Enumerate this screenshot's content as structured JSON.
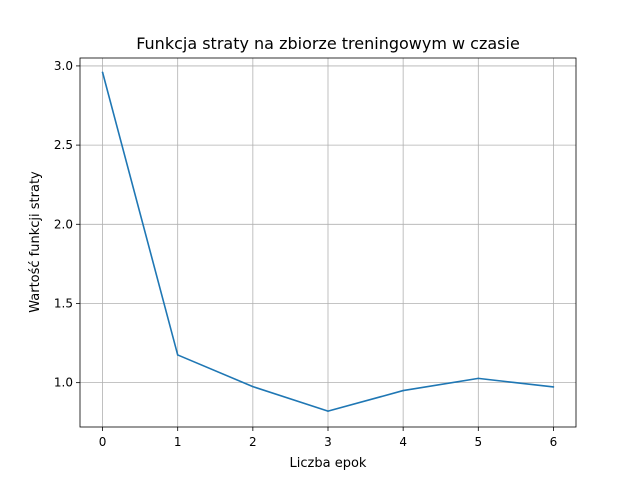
{
  "chart_data": {
    "type": "line",
    "title": "Funkcja straty na zbiorze treningowym w czasie",
    "xlabel": "Liczba epok",
    "ylabel": "Wartość funkcji straty",
    "x": [
      0,
      1,
      2,
      3,
      4,
      5,
      6
    ],
    "series": [
      {
        "values": [
          2.96,
          1.175,
          0.975,
          0.82,
          0.95,
          1.027,
          0.973
        ],
        "color": "#1f77b4"
      }
    ],
    "xlim": [
      -0.3,
      6.3
    ],
    "ylim": [
      0.72,
      3.05
    ],
    "xticks": [
      "0",
      "1",
      "2",
      "3",
      "4",
      "5",
      "6"
    ],
    "yticks": [
      "1.0",
      "1.5",
      "2.0",
      "2.5",
      "3.0"
    ],
    "grid": true
  }
}
